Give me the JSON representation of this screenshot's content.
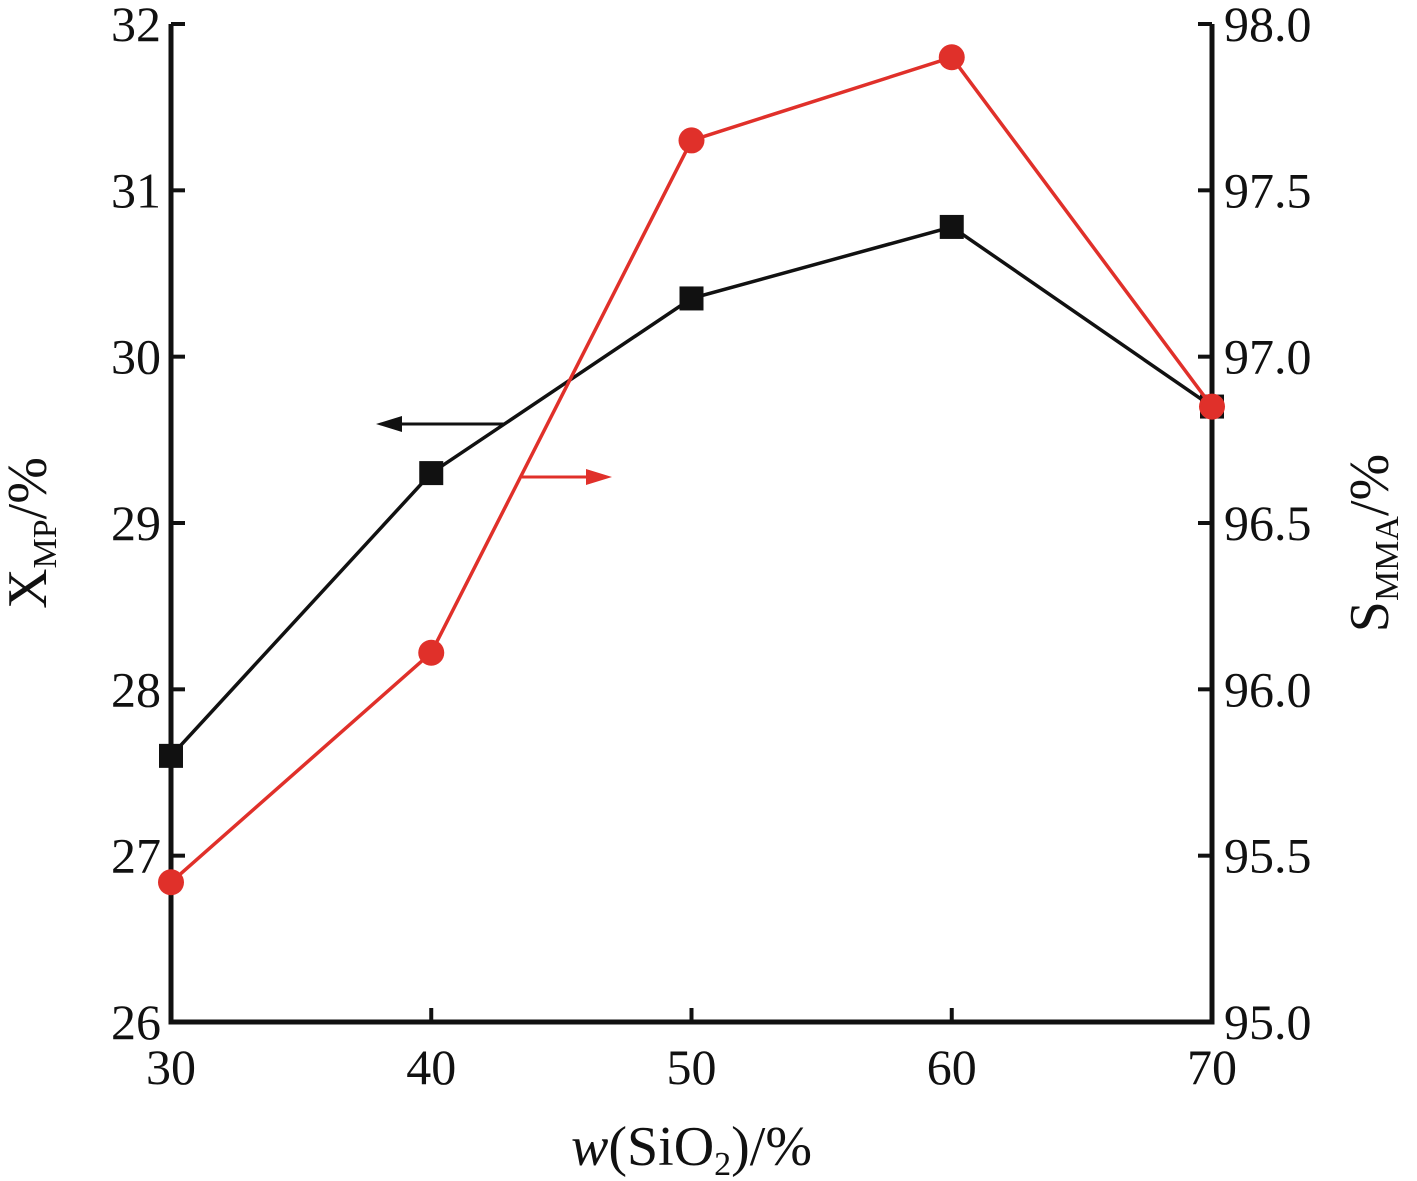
{
  "chart_data": {
    "type": "line",
    "x": [
      30,
      40,
      50,
      60,
      70
    ],
    "xlabel": {
      "prefix": "w",
      "middle": "(SiO",
      "subscript": "2",
      "suffix": ")/%"
    },
    "ylabel_left": {
      "main": "X",
      "subscript": "MP",
      "suffix": "/%"
    },
    "ylabel_right": {
      "main": "S",
      "subscript": "MMA",
      "suffix": "/%"
    },
    "xlim": [
      30,
      70
    ],
    "ylim_left": [
      26,
      32
    ],
    "ylim_right": [
      95.0,
      98.0
    ],
    "x_ticks": [
      "30",
      "40",
      "50",
      "60",
      "70"
    ],
    "y_left_ticks": [
      "26",
      "27",
      "28",
      "29",
      "30",
      "31",
      "32"
    ],
    "y_right_ticks": [
      "95.0",
      "95.5",
      "96.0",
      "96.5",
      "97.0",
      "97.5",
      "98.0"
    ],
    "grid": false,
    "series": [
      {
        "axis": "left",
        "marker": "square",
        "color": "#111111",
        "values": [
          27.6,
          29.3,
          30.35,
          30.78,
          29.7
        ]
      },
      {
        "axis": "right",
        "marker": "circle",
        "color": "#e0302a",
        "values": [
          95.42,
          96.11,
          97.65,
          97.9,
          96.85
        ]
      }
    ],
    "annotations": [
      {
        "type": "arrow",
        "direction": "left",
        "series_axis": "left",
        "color": "#111111"
      },
      {
        "type": "arrow",
        "direction": "right",
        "series_axis": "right",
        "color": "#e0302a"
      }
    ]
  }
}
